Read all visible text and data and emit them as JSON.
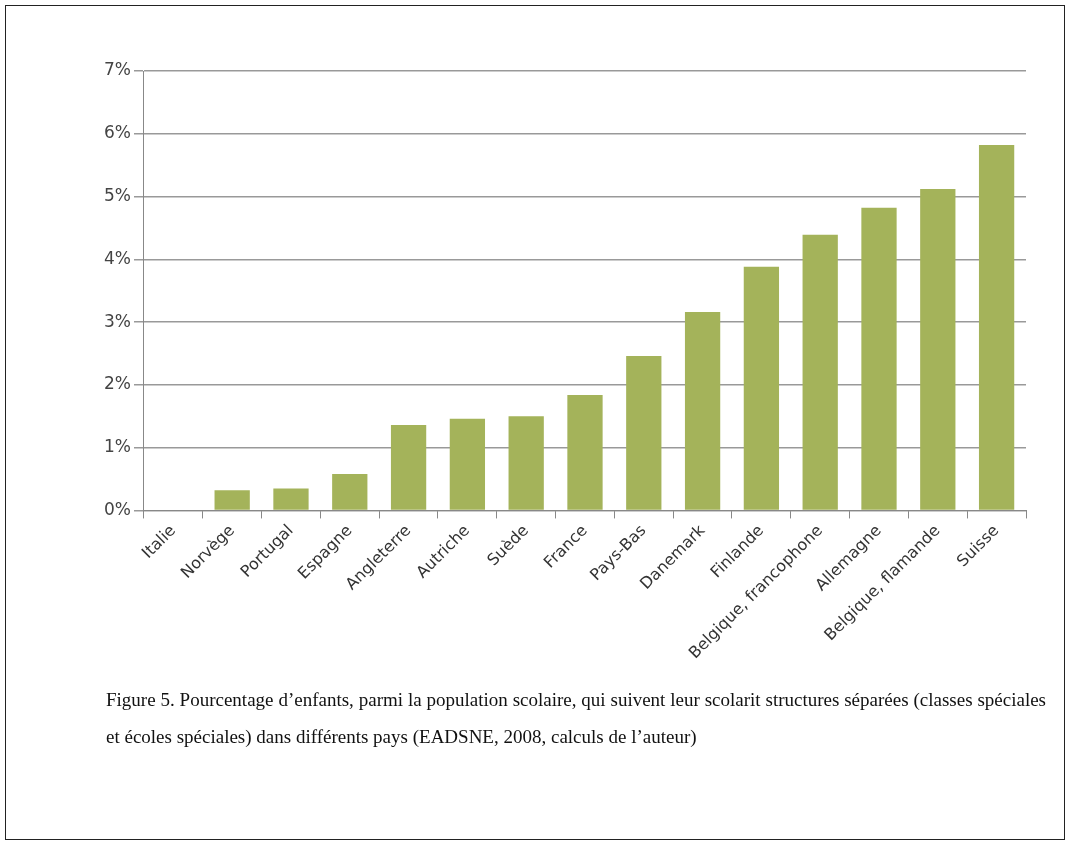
{
  "chart_data": {
    "type": "bar",
    "categories": [
      "Italie",
      "Norvège",
      "Portugal",
      "Espagne",
      "Angleterre",
      "Autriche",
      "Suède",
      "France",
      "Pays-Bas",
      "Danemark",
      "Finlande",
      "Belgique, francophone",
      "Allemagne",
      "Belgique, flamande",
      "Suisse"
    ],
    "values": [
      0,
      0.32,
      0.35,
      0.58,
      1.36,
      1.46,
      1.5,
      1.84,
      2.46,
      3.16,
      3.88,
      4.39,
      4.82,
      5.12,
      5.82
    ],
    "color": "#a4b35a",
    "ylim": [
      0,
      7
    ],
    "yticks": [
      {
        "value": 0,
        "label": "0%"
      },
      {
        "value": 1,
        "label": "1%"
      },
      {
        "value": 2,
        "label": "2%"
      },
      {
        "value": 3,
        "label": "3%"
      },
      {
        "value": 4,
        "label": "4%"
      },
      {
        "value": 5,
        "label": "5%"
      },
      {
        "value": 6,
        "label": "6%"
      },
      {
        "value": 7,
        "label": "7%"
      }
    ],
    "grid": "y",
    "legend": false,
    "annotations": [
      "Figure 5. Pourcentage d’enfants, parmi la population scolaire, qui suivent leur scolarit structures séparées (classes spéciales et écoles spéciales) dans différents pays (EADSNE, 2008, calculs de l’auteur)"
    ]
  }
}
